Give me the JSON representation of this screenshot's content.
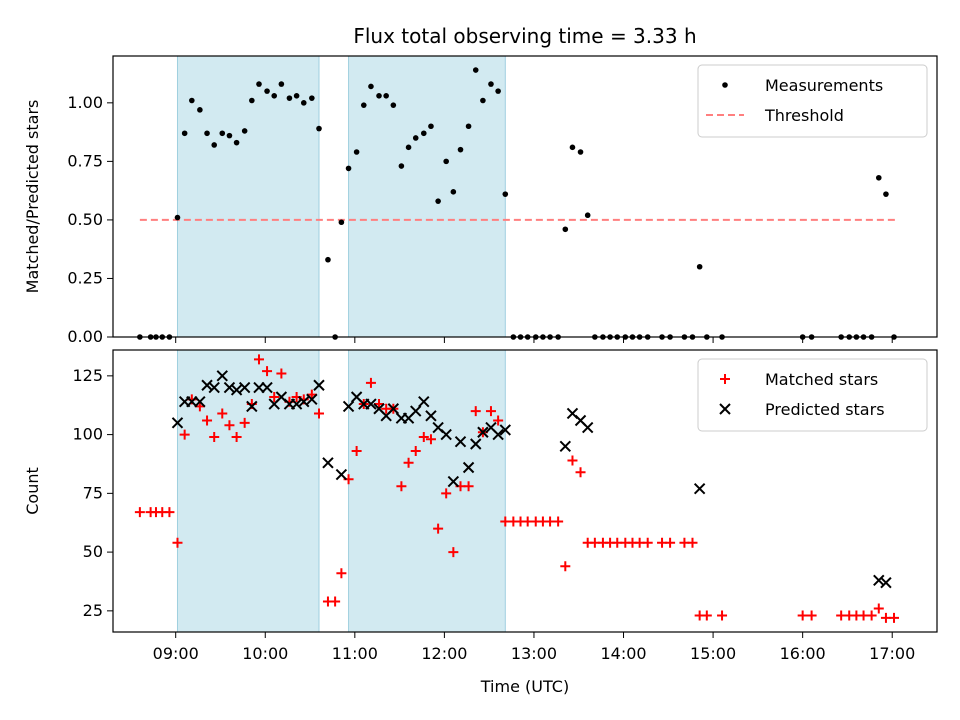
{
  "chart_data": {
    "title": "Flux total observing time = 3.33 h",
    "xlabel": "Time (UTC)",
    "x_ticks": [
      "09:00",
      "10:00",
      "11:00",
      "12:00",
      "13:00",
      "14:00",
      "15:00",
      "16:00",
      "17:00"
    ],
    "x_tick_hours": [
      9,
      10,
      11,
      12,
      13,
      14,
      15,
      16,
      17
    ],
    "xlim_hours": [
      8.3,
      17.5
    ],
    "shaded_intervals_hours": [
      [
        9.02,
        10.6
      ],
      [
        10.93,
        12.68
      ]
    ],
    "shade_color": "#add8e6",
    "panels": [
      {
        "type": "scatter",
        "ylabel": "Matched/Predicted stars",
        "ylim": [
          0,
          1.2
        ],
        "y_ticks": [
          "0.00",
          "0.25",
          "0.50",
          "0.75",
          "1.00"
        ],
        "y_tick_values": [
          0,
          0.25,
          0.5,
          0.75,
          1.0
        ],
        "legend_position": "top-right",
        "series": [
          {
            "name": "Measurements",
            "marker": "dot",
            "color": "#000000",
            "x": [
              8.6,
              8.72,
              8.78,
              8.85,
              8.93,
              9.02,
              9.1,
              9.18,
              9.27,
              9.35,
              9.43,
              9.52,
              9.6,
              9.68,
              9.77,
              9.85,
              9.93,
              10.02,
              10.1,
              10.18,
              10.27,
              10.35,
              10.43,
              10.52,
              10.6,
              10.7,
              10.78,
              10.85,
              10.93,
              11.02,
              11.1,
              11.18,
              11.27,
              11.35,
              11.43,
              11.52,
              11.6,
              11.68,
              11.77,
              11.85,
              11.93,
              12.02,
              12.1,
              12.18,
              12.27,
              12.35,
              12.43,
              12.52,
              12.6,
              12.68,
              12.77,
              12.85,
              12.93,
              13.02,
              13.1,
              13.18,
              13.27,
              13.35,
              13.43,
              13.52,
              13.6,
              13.68,
              13.77,
              13.85,
              13.93,
              14.02,
              14.1,
              14.18,
              14.27,
              14.43,
              14.52,
              14.68,
              14.77,
              14.85,
              14.93,
              15.1,
              16.0,
              16.1,
              16.43,
              16.52,
              16.6,
              16.68,
              16.77,
              16.85,
              16.93,
              17.02
            ],
            "y": [
              0,
              0,
              0,
              0,
              0,
              0.51,
              0.87,
              1.01,
              0.97,
              0.87,
              0.82,
              0.87,
              0.86,
              0.83,
              0.88,
              1.01,
              1.08,
              1.05,
              1.03,
              1.08,
              1.02,
              1.03,
              1.0,
              1.02,
              0.89,
              0.33,
              0,
              0.49,
              0.72,
              0.79,
              0.99,
              1.07,
              1.03,
              1.03,
              0.99,
              0.73,
              0.81,
              0.85,
              0.87,
              0.9,
              0.58,
              0.75,
              0.62,
              0.8,
              0.9,
              1.14,
              1.01,
              1.08,
              1.05,
              0.61,
              0,
              0,
              0,
              0,
              0,
              0,
              0,
              0.46,
              0.81,
              0.79,
              0.52,
              0,
              0,
              0,
              0,
              0,
              0,
              0,
              0,
              0,
              0,
              0,
              0,
              0.3,
              0,
              0,
              0,
              0,
              0,
              0,
              0,
              0,
              0,
              0.68,
              0.61,
              0
            ]
          },
          {
            "name": "Threshold",
            "marker": "dashed-line",
            "color": "#ff7f7f",
            "x": [
              8.6,
              17.05
            ],
            "y": [
              0.5,
              0.5
            ]
          }
        ]
      },
      {
        "type": "scatter",
        "ylabel": "Count",
        "ylim": [
          16,
          136
        ],
        "y_ticks": [
          "25",
          "50",
          "75",
          "100",
          "125"
        ],
        "y_tick_values": [
          25,
          50,
          75,
          100,
          125
        ],
        "legend_position": "top-right",
        "series": [
          {
            "name": "Matched stars",
            "marker": "plus",
            "color": "#ff0000",
            "x": [
              8.6,
              8.72,
              8.78,
              8.85,
              8.93,
              9.02,
              9.1,
              9.18,
              9.27,
              9.35,
              9.43,
              9.52,
              9.6,
              9.68,
              9.77,
              9.85,
              9.93,
              10.02,
              10.1,
              10.18,
              10.27,
              10.35,
              10.43,
              10.52,
              10.6,
              10.7,
              10.78,
              10.85,
              10.93,
              11.02,
              11.1,
              11.18,
              11.27,
              11.35,
              11.43,
              11.52,
              11.6,
              11.68,
              11.77,
              11.85,
              11.93,
              12.02,
              12.1,
              12.18,
              12.27,
              12.35,
              12.43,
              12.52,
              12.6,
              12.68,
              12.77,
              12.85,
              12.93,
              13.02,
              13.1,
              13.18,
              13.27,
              13.35,
              13.43,
              13.52,
              13.6,
              13.68,
              13.77,
              13.85,
              13.93,
              14.02,
              14.1,
              14.18,
              14.27,
              14.43,
              14.52,
              14.68,
              14.77,
              14.85,
              14.93,
              15.1,
              16.0,
              16.1,
              16.43,
              16.52,
              16.6,
              16.68,
              16.77,
              16.85,
              16.93,
              17.02
            ],
            "y": [
              67,
              67,
              67,
              67,
              67,
              54,
              100,
              115,
              112,
              106,
              99,
              109,
              104,
              99,
              105,
              113,
              132,
              127,
              116,
              126,
              114,
              116,
              115,
              117,
              109,
              29,
              29,
              41,
              81,
              93,
              113,
              122,
              113,
              111,
              111,
              78,
              88,
              93,
              99,
              98,
              60,
              75,
              50,
              78,
              78,
              110,
              101,
              110,
              106,
              63,
              63,
              63,
              63,
              63,
              63,
              63,
              63,
              44,
              89,
              84,
              54,
              54,
              54,
              54,
              54,
              54,
              54,
              54,
              54,
              54,
              54,
              54,
              54,
              23,
              23,
              23,
              23,
              23,
              23,
              23,
              23,
              23,
              23,
              26,
              22,
              22
            ]
          },
          {
            "name": "Predicted stars",
            "marker": "x",
            "color": "#000000",
            "x": [
              9.02,
              9.1,
              9.18,
              9.27,
              9.35,
              9.43,
              9.52,
              9.6,
              9.68,
              9.77,
              9.85,
              9.93,
              10.02,
              10.1,
              10.18,
              10.27,
              10.35,
              10.43,
              10.52,
              10.6,
              10.7,
              10.85,
              10.93,
              11.02,
              11.1,
              11.18,
              11.27,
              11.35,
              11.43,
              11.52,
              11.6,
              11.68,
              11.77,
              11.85,
              11.93,
              12.02,
              12.1,
              12.18,
              12.27,
              12.35,
              12.43,
              12.52,
              12.6,
              12.68,
              13.35,
              13.43,
              13.52,
              13.6,
              14.85,
              16.85,
              16.93
            ],
            "y": [
              105,
              114,
              114,
              114,
              121,
              120,
              125,
              120,
              119,
              120,
              112,
              120,
              120,
              113,
              116,
              113,
              113,
              114,
              115,
              121,
              88,
              83,
              112,
              116,
              113,
              113,
              111,
              108,
              111,
              107,
              107,
              110,
              114,
              108,
              103,
              100,
              80,
              97,
              86,
              96,
              101,
              103,
              100,
              102,
              95,
              109,
              106,
              103,
              77,
              38,
              37
            ]
          }
        ]
      }
    ]
  }
}
